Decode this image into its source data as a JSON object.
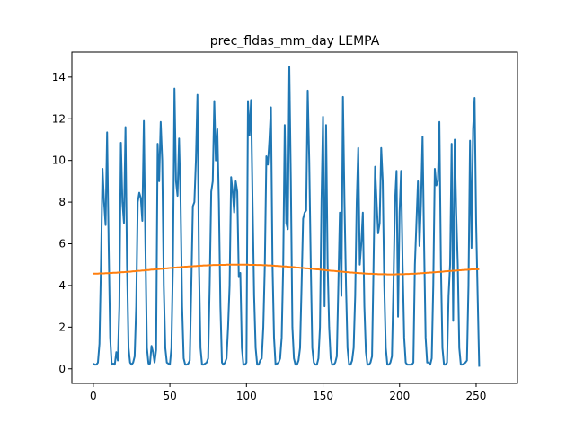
{
  "chart_data": {
    "type": "line",
    "title": "prec_fldas_mm_day LEMPA",
    "xlabel": "",
    "ylabel": "",
    "xlim": [
      -14,
      277
    ],
    "ylim": [
      -0.7,
      15.2
    ],
    "x_ticks": [
      0,
      50,
      100,
      150,
      200,
      250
    ],
    "y_ticks": [
      0,
      2,
      4,
      6,
      8,
      10,
      12,
      14
    ],
    "x_tick_labels": [
      "0",
      "50",
      "100",
      "150",
      "200",
      "250"
    ],
    "y_tick_labels": [
      "0",
      "2",
      "4",
      "6",
      "8",
      "10",
      "12",
      "14"
    ],
    "grid": false,
    "legend": "none",
    "colors": {
      "series_1": "#1f77b4",
      "series_2": "#ff7f0e",
      "axes": "#000000"
    },
    "series": [
      {
        "values": [
          0.25,
          0.2,
          0.2,
          0.3,
          1.2,
          5.0,
          9.6,
          8.0,
          6.9,
          11.35,
          6.0,
          1.5,
          0.2,
          0.25,
          0.2,
          0.8,
          0.4,
          3.0,
          10.85,
          8.0,
          7.0,
          11.6,
          5.0,
          1.0,
          0.3,
          0.2,
          0.3,
          0.6,
          3.0,
          8.0,
          8.45,
          8.2,
          7.1,
          11.9,
          6.0,
          1.0,
          0.25,
          0.25,
          1.1,
          0.8,
          0.3,
          0.9,
          10.8,
          9.0,
          11.85,
          10.0,
          4.0,
          1.0,
          0.3,
          0.25,
          0.2,
          1.0,
          5.0,
          13.45,
          9.0,
          8.3,
          11.05,
          8.0,
          3.0,
          0.5,
          0.2,
          0.2,
          0.25,
          0.4,
          4.0,
          7.8,
          8.0,
          10.0,
          13.15,
          5.0,
          1.0,
          0.2,
          0.2,
          0.25,
          0.3,
          0.5,
          4.0,
          8.5,
          9.0,
          12.85,
          10.0,
          11.5,
          8.0,
          3.0,
          0.3,
          0.2,
          0.3,
          0.5,
          2.0,
          4.0,
          9.2,
          8.5,
          7.5,
          9.0,
          8.5,
          4.4,
          4.6,
          1.0,
          0.2,
          0.2,
          0.3,
          12.85,
          11.2,
          12.9,
          8.0,
          3.5,
          1.0,
          0.2,
          0.2,
          0.4,
          0.5,
          2.0,
          5.0,
          10.2,
          9.8,
          11.0,
          12.55,
          5.0,
          1.5,
          0.2,
          0.25,
          0.3,
          0.5,
          1.5,
          5.0,
          11.7,
          7.0,
          6.7,
          14.5,
          9.0,
          2.0,
          0.5,
          0.2,
          0.2,
          0.4,
          1.0,
          4.0,
          7.2,
          7.5,
          7.6,
          13.35,
          10.0,
          5.0,
          1.0,
          0.3,
          0.2,
          0.2,
          0.5,
          2.0,
          8.0,
          12.1,
          3.0,
          11.7,
          5.0,
          2.0,
          0.5,
          0.2,
          0.2,
          0.3,
          0.6,
          4.0,
          7.5,
          3.5,
          13.05,
          8.0,
          4.0,
          1.0,
          0.2,
          0.2,
          0.4,
          1.0,
          3.5,
          8.0,
          10.6,
          5.0,
          6.0,
          7.5,
          3.0,
          0.8,
          0.2,
          0.2,
          0.3,
          0.6,
          5.0,
          9.7,
          8.0,
          6.5,
          7.0,
          10.6,
          9.0,
          4.0,
          1.0,
          0.2,
          0.2,
          0.3,
          0.6,
          4.0,
          8.0,
          9.5,
          2.5,
          7.5,
          9.5,
          5.0,
          1.5,
          0.3,
          0.2,
          0.2,
          0.2,
          0.2,
          0.3,
          5.0,
          7.0,
          9.0,
          5.9,
          8.0,
          11.15,
          6.0,
          1.5,
          0.3,
          0.3,
          0.2,
          0.5,
          4.0,
          9.6,
          8.8,
          9.0,
          11.85,
          5.0,
          1.0,
          0.2,
          0.2,
          0.3,
          3.5,
          5.0,
          10.8,
          2.3,
          11.0,
          7.5,
          5.0,
          1.0,
          0.2,
          0.2,
          0.25,
          0.3,
          0.4,
          4.0,
          10.95,
          5.8,
          11.5,
          13.0,
          7.0,
          3.5,
          0.1
        ]
      },
      {
        "values": [
          4.57,
          4.57,
          4.57,
          4.57,
          4.58,
          4.58,
          4.58,
          4.58,
          4.59,
          4.59,
          4.59,
          4.6,
          4.6,
          4.61,
          4.61,
          4.61,
          4.62,
          4.62,
          4.63,
          4.64,
          4.64,
          4.65,
          4.65,
          4.66,
          4.66,
          4.67,
          4.68,
          4.68,
          4.69,
          4.7,
          4.7,
          4.71,
          4.72,
          4.72,
          4.73,
          4.74,
          4.74,
          4.75,
          4.76,
          4.76,
          4.77,
          4.78,
          4.78,
          4.79,
          4.8,
          4.8,
          4.81,
          4.82,
          4.82,
          4.83,
          4.84,
          4.84,
          4.85,
          4.86,
          4.86,
          4.87,
          4.87,
          4.88,
          4.89,
          4.89,
          4.9,
          4.9,
          4.91,
          4.91,
          4.92,
          4.92,
          4.93,
          4.93,
          4.94,
          4.94,
          4.95,
          4.95,
          4.96,
          4.96,
          4.96,
          4.97,
          4.97,
          4.97,
          4.98,
          4.98,
          4.98,
          4.98,
          4.99,
          4.99,
          4.99,
          4.99,
          4.99,
          5.0,
          5.0,
          5.0,
          5.0,
          5.0,
          5.0,
          5.0,
          5.0,
          5.0,
          5.0,
          5.0,
          5.0,
          5.0,
          5.0,
          5.0,
          4.99,
          4.99,
          4.99,
          4.99,
          4.99,
          4.98,
          4.98,
          4.98,
          4.98,
          4.97,
          4.97,
          4.97,
          4.96,
          4.96,
          4.96,
          4.95,
          4.95,
          4.94,
          4.94,
          4.93,
          4.93,
          4.92,
          4.92,
          4.91,
          4.91,
          4.9,
          4.89,
          4.89,
          4.88,
          4.88,
          4.87,
          4.86,
          4.86,
          4.85,
          4.84,
          4.84,
          4.83,
          4.82,
          4.82,
          4.81,
          4.8,
          4.8,
          4.79,
          4.78,
          4.77,
          4.77,
          4.76,
          4.75,
          4.75,
          4.74,
          4.73,
          4.72,
          4.72,
          4.71,
          4.7,
          4.7,
          4.69,
          4.68,
          4.68,
          4.67,
          4.66,
          4.66,
          4.65,
          4.64,
          4.64,
          4.63,
          4.62,
          4.62,
          4.61,
          4.61,
          4.6,
          4.6,
          4.59,
          4.59,
          4.58,
          4.58,
          4.57,
          4.57,
          4.56,
          4.56,
          4.56,
          4.55,
          4.55,
          4.55,
          4.54,
          4.54,
          4.54,
          4.54,
          4.54,
          4.54,
          4.53,
          4.53,
          4.53,
          4.53,
          4.53,
          4.53,
          4.54,
          4.54,
          4.54,
          4.54,
          4.54,
          4.54,
          4.55,
          4.55,
          4.55,
          4.56,
          4.56,
          4.56,
          4.57,
          4.57,
          4.58,
          4.58,
          4.59,
          4.59,
          4.6,
          4.6,
          4.61,
          4.61,
          4.62,
          4.62,
          4.63,
          4.63,
          4.64,
          4.65,
          4.65,
          4.66,
          4.66,
          4.67,
          4.68,
          4.68,
          4.69,
          4.69,
          4.7,
          4.71,
          4.71,
          4.72,
          4.72,
          4.73,
          4.73,
          4.74,
          4.74,
          4.75,
          4.75,
          4.76,
          4.76,
          4.77,
          4.77,
          4.77,
          4.78,
          4.78,
          4.78
        ]
      }
    ]
  }
}
